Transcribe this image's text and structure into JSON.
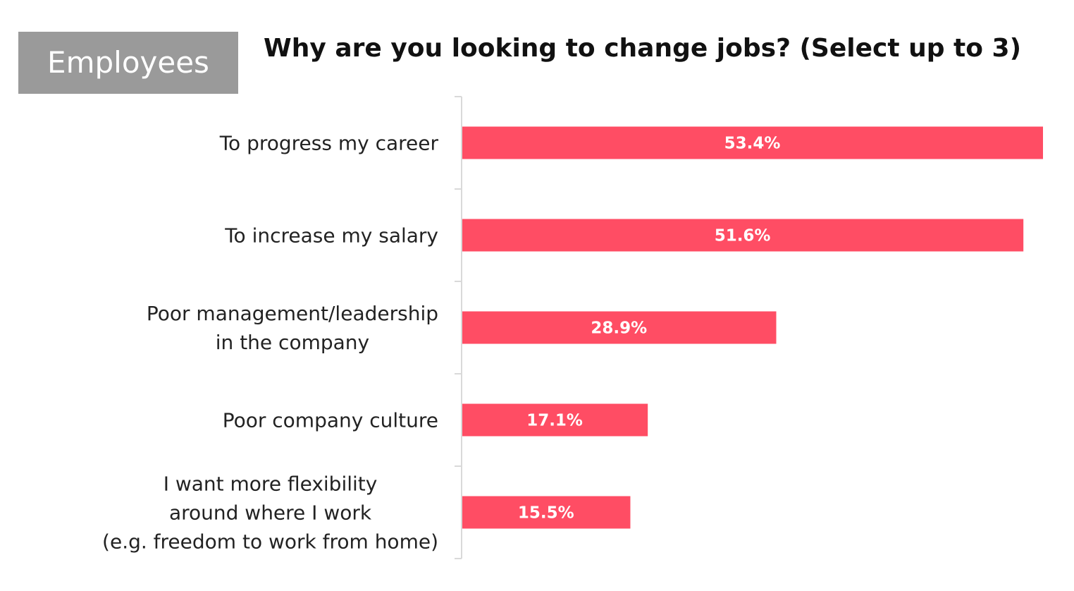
{
  "badge": {
    "label": "Employees",
    "color": "#9a9a9a"
  },
  "chart_data": {
    "type": "bar",
    "orientation": "horizontal",
    "title": "Why are you looking to change jobs? (Select up to 3)",
    "categories": [
      [
        "To progress my career"
      ],
      [
        "To increase my salary"
      ],
      [
        "Poor management/leadership",
        "in the company"
      ],
      [
        "Poor company culture"
      ],
      [
        "I want more flexibility",
        "around where I work",
        "(e.g. freedom to work from home)"
      ]
    ],
    "values": [
      53.4,
      51.6,
      28.9,
      17.1,
      15.5
    ],
    "value_labels": [
      "53.4%",
      "51.6%",
      "28.9%",
      "17.1%",
      "15.5%"
    ],
    "xlim": [
      0,
      53.4
    ],
    "grid": false,
    "bar_color": "#ff4d64",
    "axis_color": "#d9d9d9"
  }
}
